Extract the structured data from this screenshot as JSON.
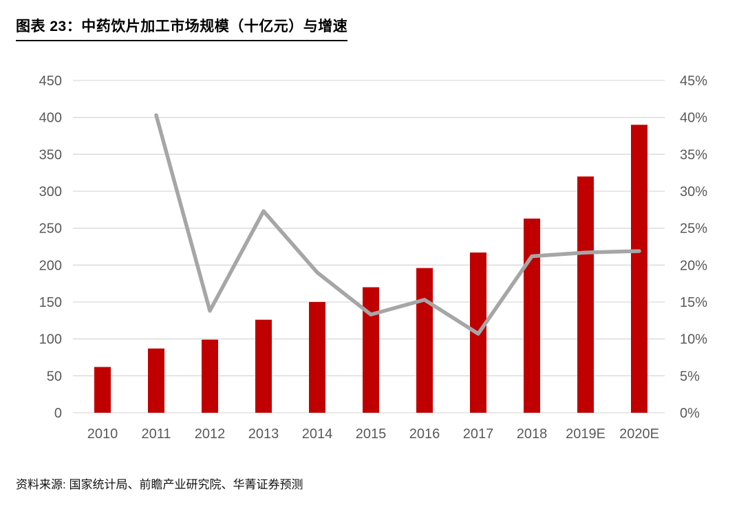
{
  "header": {
    "title": "图表 23：中药饮片加工市场规模（十亿元）与增速"
  },
  "footer": {
    "source": "资料来源: 国家统计局、前瞻产业研究院、华菁证券预测"
  },
  "chart_data": {
    "type": "bar",
    "subtype": "bar+line combo",
    "title": "中药饮片加工市场规模（十亿元）与增速",
    "categories": [
      "2010",
      "2011",
      "2012",
      "2013",
      "2014",
      "2015",
      "2016",
      "2017",
      "2018",
      "2019E",
      "2020E"
    ],
    "series": [
      {
        "name": "市场规模（十亿元）",
        "type": "bar",
        "axis": "left",
        "color": "#C00000",
        "values": [
          62,
          87,
          99,
          126,
          150,
          170,
          196,
          217,
          263,
          320,
          390
        ]
      },
      {
        "name": "增速",
        "type": "line",
        "axis": "right",
        "color": "#A6A6A6",
        "values": [
          null,
          40.3,
          13.8,
          27.3,
          19.0,
          13.3,
          15.3,
          10.7,
          21.2,
          21.7,
          21.9
        ]
      }
    ],
    "left_axis": {
      "min": 0,
      "max": 450,
      "step": 50,
      "ticks": [
        "0",
        "50",
        "100",
        "150",
        "200",
        "250",
        "300",
        "350",
        "400",
        "450"
      ]
    },
    "right_axis": {
      "min": 0,
      "max": 45,
      "step": 5,
      "ticks": [
        "0%",
        "5%",
        "10%",
        "15%",
        "20%",
        "25%",
        "30%",
        "35%",
        "40%",
        "45%"
      ]
    },
    "grid": true,
    "gridline_color": "#D9D9D9",
    "axis_label_color": "#595959",
    "legend": "none"
  }
}
